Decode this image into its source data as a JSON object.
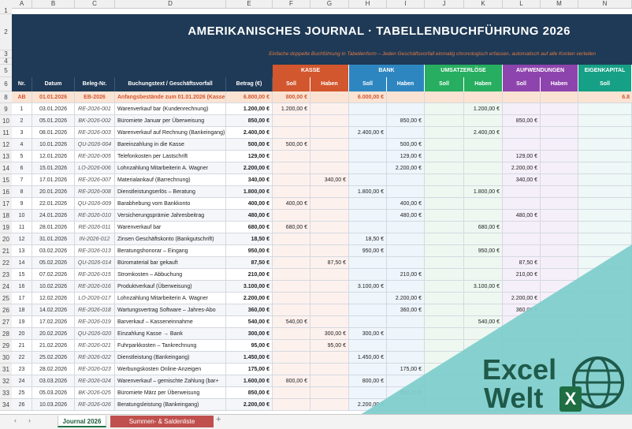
{
  "columns": [
    "A",
    "B",
    "C",
    "D",
    "E",
    "F",
    "G",
    "H",
    "I",
    "J",
    "K",
    "L",
    "M",
    "N"
  ],
  "title": "AMERIKANISCHES JOURNAL  ·  TABELLENBUCHFÜHRUNG  2026",
  "subtitle": "Einfache doppelte Buchführung in Tabellenform  –  Jeden Geschäftsvorfall einmalig chronologisch erfassen, automatisch auf alle Konten verteilen",
  "headers": {
    "nr": "Nr.",
    "datum": "Datum",
    "beleg": "Beleg-Nr.",
    "text": "Buchungstext / Geschäftsvorfall",
    "betrag": "Betrag (€)",
    "soll": "Soll",
    "haben": "Haben"
  },
  "groups": [
    {
      "label": "KASSE",
      "color": "#d2562e"
    },
    {
      "label": "BANK",
      "color": "#2e86c1"
    },
    {
      "label": "UMSATZERLÖSE",
      "color": "#27ae60"
    },
    {
      "label": "AUFWENDUNGEN",
      "color": "#8e44ad"
    },
    {
      "label": "EIGENKAPITAL",
      "color": "#16a085"
    }
  ],
  "ab_row": {
    "nr": "AB",
    "datum": "01.01.2026",
    "beleg": "EB-2026",
    "text": "Anfangsbestände zum 01.01.2026  (Kasse + B",
    "betrag": "6.800,00 €",
    "kasse_soll": "800,00 €",
    "bank_soll": "6.000,00 €",
    "ek_haben": "6.8"
  },
  "rows": [
    {
      "rn": "9",
      "nr": "1",
      "datum": "03.01.2026",
      "beleg": "RE-2026-001",
      "text": "Warenverkauf bar (Kundenrechnung)",
      "betrag": "1.200,00 €",
      "ks": "1.200,00 €",
      "kh": "",
      "bs": "",
      "bh": "",
      "us": "",
      "uh": "1.200,00 €",
      "as": "",
      "ah": ""
    },
    {
      "rn": "10",
      "nr": "2",
      "datum": "05.01.2026",
      "beleg": "BK-2026-002",
      "text": "Büromiete Januar per Überweisung",
      "betrag": "850,00 €",
      "ks": "",
      "kh": "",
      "bs": "",
      "bh": "850,00 €",
      "us": "",
      "uh": "",
      "as": "850,00 €",
      "ah": ""
    },
    {
      "rn": "11",
      "nr": "3",
      "datum": "08.01.2026",
      "beleg": "RE-2026-003",
      "text": "Warenverkauf auf Rechnung (Bankeingang)",
      "betrag": "2.400,00 €",
      "ks": "",
      "kh": "",
      "bs": "2.400,00 €",
      "bh": "",
      "us": "",
      "uh": "2.400,00 €",
      "as": "",
      "ah": ""
    },
    {
      "rn": "12",
      "nr": "4",
      "datum": "10.01.2026",
      "beleg": "QU-2026-004",
      "text": "Bareinzahlung in die Kasse",
      "betrag": "500,00 €",
      "ks": "500,00 €",
      "kh": "",
      "bs": "",
      "bh": "500,00 €",
      "us": "",
      "uh": "",
      "as": "",
      "ah": ""
    },
    {
      "rn": "13",
      "nr": "5",
      "datum": "12.01.2026",
      "beleg": "RE-2026-005",
      "text": "Telefonkosten per Lastschrift",
      "betrag": "129,00 €",
      "ks": "",
      "kh": "",
      "bs": "",
      "bh": "129,00 €",
      "us": "",
      "uh": "",
      "as": "129,00 €",
      "ah": ""
    },
    {
      "rn": "14",
      "nr": "6",
      "datum": "15.01.2026",
      "beleg": "LO-2026-006",
      "text": "Lohnzahlung Mitarbeiterin A. Wagner",
      "betrag": "2.200,00 €",
      "ks": "",
      "kh": "",
      "bs": "",
      "bh": "2.200,00 €",
      "us": "",
      "uh": "",
      "as": "2.200,00 €",
      "ah": ""
    },
    {
      "rn": "15",
      "nr": "7",
      "datum": "17.01.2026",
      "beleg": "RE-2026-007",
      "text": "Materialankauf (Barrechnung)",
      "betrag": "340,00 €",
      "ks": "",
      "kh": "340,00 €",
      "bs": "",
      "bh": "",
      "us": "",
      "uh": "",
      "as": "340,00 €",
      "ah": ""
    },
    {
      "rn": "16",
      "nr": "8",
      "datum": "20.01.2026",
      "beleg": "RE-2026-008",
      "text": "Dienstleistungserlös – Beratung",
      "betrag": "1.800,00 €",
      "ks": "",
      "kh": "",
      "bs": "1.800,00 €",
      "bh": "",
      "us": "",
      "uh": "1.800,00 €",
      "as": "",
      "ah": ""
    },
    {
      "rn": "17",
      "nr": "9",
      "datum": "22.01.2026",
      "beleg": "QU-2026-009",
      "text": "Barabhebung vom Bankkonto",
      "betrag": "400,00 €",
      "ks": "400,00 €",
      "kh": "",
      "bs": "",
      "bh": "400,00 €",
      "us": "",
      "uh": "",
      "as": "",
      "ah": ""
    },
    {
      "rn": "18",
      "nr": "10",
      "datum": "24.01.2026",
      "beleg": "RE-2026-010",
      "text": "Versicherungsprämie Jahresbeitrag",
      "betrag": "480,00 €",
      "ks": "",
      "kh": "",
      "bs": "",
      "bh": "480,00 €",
      "us": "",
      "uh": "",
      "as": "480,00 €",
      "ah": ""
    },
    {
      "rn": "19",
      "nr": "11",
      "datum": "28.01.2026",
      "beleg": "RE-2026-011",
      "text": "Warenverkauf bar",
      "betrag": "680,00 €",
      "ks": "680,00 €",
      "kh": "",
      "bs": "",
      "bh": "",
      "us": "",
      "uh": "680,00 €",
      "as": "",
      "ah": ""
    },
    {
      "rn": "20",
      "nr": "12",
      "datum": "31.01.2026",
      "beleg": "IN-2026-012",
      "text": "Zinsen Geschäftskonto (Bankgutschrift)",
      "betrag": "18,50 €",
      "ks": "",
      "kh": "",
      "bs": "18,50 €",
      "bh": "",
      "us": "",
      "uh": "",
      "as": "",
      "ah": ""
    },
    {
      "rn": "21",
      "nr": "13",
      "datum": "03.02.2026",
      "beleg": "RE-2026-013",
      "text": "Beratungshonorar – Eingang",
      "betrag": "950,00 €",
      "ks": "",
      "kh": "",
      "bs": "950,00 €",
      "bh": "",
      "us": "",
      "uh": "950,00 €",
      "as": "",
      "ah": ""
    },
    {
      "rn": "22",
      "nr": "14",
      "datum": "05.02.2026",
      "beleg": "QU-2026-014",
      "text": "Büromaterial bar gekauft",
      "betrag": "87,50 €",
      "ks": "",
      "kh": "87,50 €",
      "bs": "",
      "bh": "",
      "us": "",
      "uh": "",
      "as": "87,50 €",
      "ah": ""
    },
    {
      "rn": "23",
      "nr": "15",
      "datum": "07.02.2026",
      "beleg": "RE-2026-015",
      "text": "Stromkosten – Abbuchung",
      "betrag": "210,00 €",
      "ks": "",
      "kh": "",
      "bs": "",
      "bh": "210,00 €",
      "us": "",
      "uh": "",
      "as": "210,00 €",
      "ah": ""
    },
    {
      "rn": "24",
      "nr": "16",
      "datum": "10.02.2026",
      "beleg": "RE-2026-016",
      "text": "Produktverkauf (Überweisung)",
      "betrag": "3.100,00 €",
      "ks": "",
      "kh": "",
      "bs": "3.100,00 €",
      "bh": "",
      "us": "",
      "uh": "3.100,00 €",
      "as": "",
      "ah": ""
    },
    {
      "rn": "25",
      "nr": "17",
      "datum": "12.02.2026",
      "beleg": "LO-2026-017",
      "text": "Lohnzahlung Mitarbeiterin A. Wagner",
      "betrag": "2.200,00 €",
      "ks": "",
      "kh": "",
      "bs": "",
      "bh": "2.200,00 €",
      "us": "",
      "uh": "",
      "as": "2.200,00 €",
      "ah": ""
    },
    {
      "rn": "26",
      "nr": "18",
      "datum": "14.02.2026",
      "beleg": "RE-2026-018",
      "text": "Wartungsvertrag Software – Jahres-Abo",
      "betrag": "360,00 €",
      "ks": "",
      "kh": "",
      "bs": "",
      "bh": "360,00 €",
      "us": "",
      "uh": "",
      "as": "360,00 €",
      "ah": ""
    },
    {
      "rn": "27",
      "nr": "19",
      "datum": "17.02.2026",
      "beleg": "RE-2026-019",
      "text": "Barverkauf – Kasseneinnahme",
      "betrag": "540,00 €",
      "ks": "540,00 €",
      "kh": "",
      "bs": "",
      "bh": "",
      "us": "",
      "uh": "540,00 €",
      "as": "",
      "ah": ""
    },
    {
      "rn": "28",
      "nr": "20",
      "datum": "20.02.2026",
      "beleg": "QU-2026-020",
      "text": "Einzahlung Kasse → Bank",
      "betrag": "300,00 €",
      "ks": "",
      "kh": "300,00 €",
      "bs": "300,00 €",
      "bh": "",
      "us": "",
      "uh": "",
      "as": "",
      "ah": ""
    },
    {
      "rn": "29",
      "nr": "21",
      "datum": "21.02.2026",
      "beleg": "RE-2026-021",
      "text": "Fuhrparkkosten – Tankrechnung",
      "betrag": "95,00 €",
      "ks": "",
      "kh": "95,00 €",
      "bs": "",
      "bh": "",
      "us": "",
      "uh": "",
      "as": "",
      "ah": ""
    },
    {
      "rn": "30",
      "nr": "22",
      "datum": "25.02.2026",
      "beleg": "RE-2026-022",
      "text": "Dienstleistung (Bankeingang)",
      "betrag": "1.450,00 €",
      "ks": "",
      "kh": "",
      "bs": "1.450,00 €",
      "bh": "",
      "us": "",
      "uh": "",
      "as": "",
      "ah": ""
    },
    {
      "rn": "31",
      "nr": "23",
      "datum": "28.02.2026",
      "beleg": "RE-2026-023",
      "text": "Werbungskosten Online-Anzeigen",
      "betrag": "175,00 €",
      "ks": "",
      "kh": "",
      "bs": "",
      "bh": "175,00 €",
      "us": "",
      "uh": "",
      "as": "",
      "ah": ""
    },
    {
      "rn": "32",
      "nr": "24",
      "datum": "03.03.2026",
      "beleg": "RE-2026-024",
      "text": "Warenverkauf – gemischte Zahlung (bar+",
      "betrag": "1.600,00 €",
      "ks": "800,00 €",
      "kh": "",
      "bs": "800,00 €",
      "bh": "",
      "us": "",
      "uh": "",
      "as": "",
      "ah": ""
    },
    {
      "rn": "33",
      "nr": "25",
      "datum": "05.03.2026",
      "beleg": "BK-2026-025",
      "text": "Büromiete März per Überweisung",
      "betrag": "850,00 €",
      "ks": "",
      "kh": "",
      "bs": "",
      "bh": "850,00 €",
      "us": "",
      "uh": "",
      "as": "",
      "ah": ""
    },
    {
      "rn": "34",
      "nr": "26",
      "datum": "10.03.2026",
      "beleg": "RE-2026-026",
      "text": "Beratungsleistung (Bankeingang)",
      "betrag": "2.200,00 €",
      "ks": "",
      "kh": "",
      "bs": "2.200,00 €",
      "bh": "",
      "us": "",
      "uh": "",
      "as": "",
      "ah": ""
    }
  ],
  "tabs": [
    {
      "label": "Journal 2026",
      "active": true
    },
    {
      "label": "Summen- & Saldenliste",
      "active": false
    }
  ],
  "add_tab": "+",
  "nav": {
    "prev": "‹",
    "next": "›"
  },
  "watermark": {
    "line1": "Excel",
    "line2": "Welt",
    "badge": "X"
  }
}
